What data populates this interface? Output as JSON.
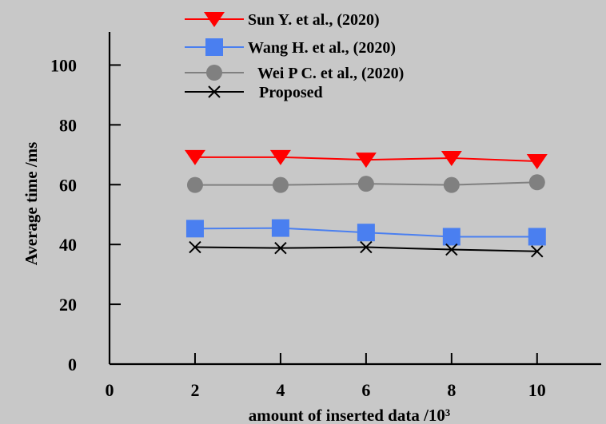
{
  "chart_data": {
    "type": "line",
    "title": "",
    "xlabel": "amount of inserted data /10³",
    "ylabel": "Average time /ms",
    "xlim": [
      0,
      11.5
    ],
    "ylim": [
      0,
      110
    ],
    "x_ticks": [
      0,
      2,
      4,
      6,
      8,
      10
    ],
    "y_ticks": [
      0,
      20,
      40,
      60,
      80,
      100
    ],
    "x": [
      2,
      4,
      6,
      8,
      10
    ],
    "legend_position": "top",
    "grid": false,
    "background_color": "#c8c8c8",
    "series": [
      {
        "name": "Sun Y. et al., (2020)",
        "values": [
          69.2,
          69.2,
          68.3,
          68.9,
          67.8
        ],
        "color": "#ff0000",
        "marker": "triangle-down"
      },
      {
        "name": "Wang H. et al., (2020)",
        "values": [
          45.3,
          45.5,
          44.0,
          42.6,
          42.6
        ],
        "color": "#4a7ff0",
        "marker": "square"
      },
      {
        "name": "Wei P C. et al., (2020)",
        "values": [
          59.9,
          59.9,
          60.3,
          59.9,
          60.8
        ],
        "color": "#808080",
        "marker": "circle"
      },
      {
        "name": "Proposed",
        "values": [
          39.1,
          38.8,
          39.1,
          38.3,
          37.7
        ],
        "color": "#000000",
        "marker": "x"
      }
    ]
  }
}
